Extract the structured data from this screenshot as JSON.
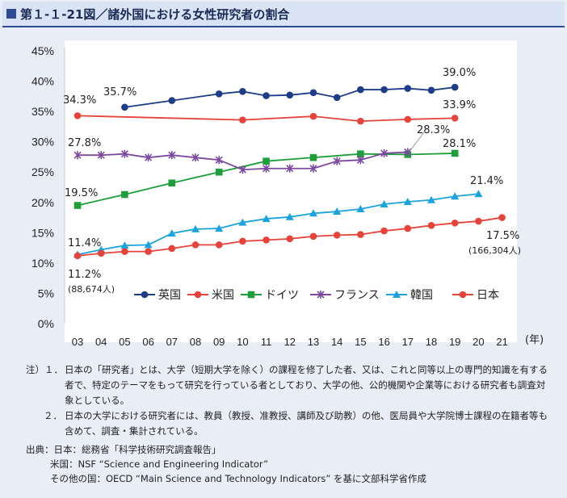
{
  "title": "第１-１-21図／諸外国における女性研究者の割合",
  "chart_data": {
    "type": "line",
    "x_unit_label": "(年)",
    "categories": [
      "03",
      "04",
      "05",
      "06",
      "07",
      "08",
      "09",
      "10",
      "11",
      "12",
      "13",
      "14",
      "15",
      "16",
      "17",
      "18",
      "19",
      "20",
      "21"
    ],
    "y_ticks": [
      "0%",
      "5%",
      "10%",
      "15%",
      "20%",
      "25%",
      "30%",
      "35%",
      "40%",
      "45%"
    ],
    "ylim": [
      0,
      45
    ],
    "grid": false,
    "legend_position": "inside-bottom",
    "series": [
      {
        "name": "英国",
        "color": "#1f3c88",
        "marker": "circle",
        "values": [
          null,
          null,
          35.7,
          null,
          36.8,
          null,
          37.9,
          38.3,
          37.6,
          37.7,
          38.1,
          37.3,
          38.6,
          38.6,
          38.8,
          38.5,
          39.0,
          null,
          null
        ]
      },
      {
        "name": "米国",
        "color": "#e8433b",
        "marker": "circle",
        "values": [
          34.3,
          null,
          null,
          null,
          null,
          null,
          null,
          33.6,
          null,
          null,
          34.2,
          null,
          33.4,
          null,
          33.7,
          null,
          33.9,
          null,
          null
        ]
      },
      {
        "name": "ドイツ",
        "color": "#1e9e3a",
        "marker": "square",
        "values": [
          19.5,
          null,
          21.3,
          null,
          23.2,
          null,
          25.0,
          null,
          26.8,
          null,
          27.4,
          null,
          28.0,
          null,
          27.9,
          null,
          28.1,
          null,
          null
        ]
      },
      {
        "name": "フランス",
        "color": "#7b4aa0",
        "marker": "x",
        "values": [
          27.8,
          27.8,
          28.0,
          27.4,
          27.8,
          27.4,
          27.0,
          25.4,
          25.6,
          25.6,
          25.6,
          26.8,
          27.0,
          28.1,
          28.3,
          null,
          null,
          null,
          null
        ]
      },
      {
        "name": "韓国",
        "color": "#1aa3dd",
        "marker": "triangle",
        "values": [
          11.4,
          12.2,
          12.9,
          13.0,
          14.9,
          15.6,
          15.7,
          16.7,
          17.3,
          17.6,
          18.2,
          18.5,
          18.9,
          19.7,
          20.1,
          20.4,
          21.0,
          21.4,
          null
        ]
      },
      {
        "name": "日本",
        "color": "#e8433b",
        "marker": "circle",
        "values": [
          11.2,
          11.6,
          11.9,
          11.9,
          12.4,
          13.0,
          13.0,
          13.6,
          13.8,
          14.0,
          14.4,
          14.6,
          14.7,
          15.3,
          15.7,
          16.2,
          16.6,
          16.9,
          17.5
        ]
      }
    ],
    "annotations": [
      {
        "series": "英国",
        "text": "35.7%"
      },
      {
        "series": "英国",
        "text": "39.0%"
      },
      {
        "series": "米国",
        "text": "34.3%"
      },
      {
        "series": "米国",
        "text": "33.9%"
      },
      {
        "series": "フランス",
        "text": "27.8%"
      },
      {
        "series": "フランス",
        "text": "28.3%"
      },
      {
        "series": "ドイツ",
        "text": "19.5%"
      },
      {
        "series": "ドイツ",
        "text": "28.1%"
      },
      {
        "series": "韓国",
        "text": "11.4%"
      },
      {
        "series": "韓国",
        "text": "21.4%"
      },
      {
        "series": "日本",
        "text": "11.2%"
      },
      {
        "series": "日本",
        "text": "(88,674人)"
      },
      {
        "series": "日本",
        "text": "17.5%"
      },
      {
        "series": "日本",
        "text": "(166,304人)"
      }
    ]
  },
  "notes": [
    {
      "lead": "注）１．",
      "text": "日本の「研究者」とは、大学（短期大学を除く）の課程を修了した者、又は、これと同等以上の専門的知識を有する者で、特定のテーマをもって研究を行っている者としており、大学の他、公的機関や企業等における研究者も調査対象としている。"
    },
    {
      "lead": "２．",
      "text": "日本の大学における研究者には、教員（教授、准教授、講師及び助教）の他、医局員や大学院博士課程の在籍者等も含めて、調査・集計されている。"
    }
  ],
  "sources": {
    "line1": "出典：日本：総務省「科学技術研究調査報告」",
    "line2": "米国：NSF “Science and Engineering Indicator”",
    "line3": "その他の国：OECD “Main Science and Technology Indicators” を基に文部科学省作成"
  }
}
